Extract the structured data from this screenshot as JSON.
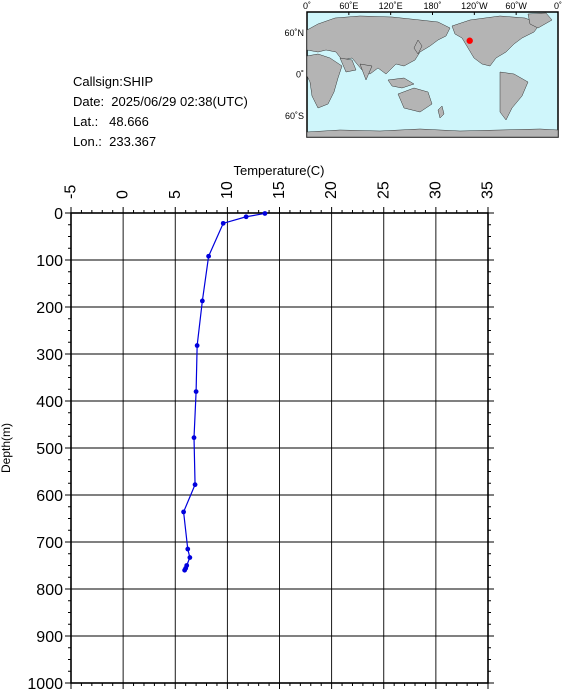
{
  "info": {
    "callsign": "Callsign:SHIP",
    "date": "Date:  2025/06/29 02:38(UTC)",
    "lat": "Lat.:   48.666",
    "lon": "Lon.:  233.367"
  },
  "map": {
    "lon_labels": [
      "0˚",
      "60˚E",
      "120˚E",
      "180˚",
      "120˚W",
      "60˚W",
      "0˚"
    ],
    "lat_labels": [
      "60˚N",
      "0˚",
      "60˚S"
    ],
    "ocean_color": "#cff6fb",
    "land_color": "#b4b4b4",
    "marker_color": "#ff0000",
    "marker_lon": 233.367,
    "marker_lat": 48.666
  },
  "chart_data": {
    "type": "line",
    "xlabel": "Temperature(C)",
    "ylabel": "Depth(m)",
    "xlim": [
      -5,
      35
    ],
    "ylim": [
      0,
      1000
    ],
    "y_inverted": true,
    "x_axis_position": "top",
    "grid": true,
    "x_ticks": [
      -5,
      0,
      5,
      10,
      15,
      20,
      25,
      30,
      35
    ],
    "y_ticks": [
      0,
      100,
      200,
      300,
      400,
      500,
      600,
      700,
      800,
      900,
      1000
    ],
    "series_color": "#0000dd",
    "series": [
      {
        "x": [
          13.6,
          11.8,
          9.6,
          8.2,
          7.6,
          7.1,
          7.0,
          6.8,
          6.9,
          5.8,
          6.2,
          6.4,
          6.1,
          6.0,
          5.9
        ],
        "y": [
          1,
          8,
          22,
          92,
          187,
          282,
          380,
          478,
          578,
          636,
          715,
          733,
          750,
          756,
          760
        ]
      }
    ]
  }
}
